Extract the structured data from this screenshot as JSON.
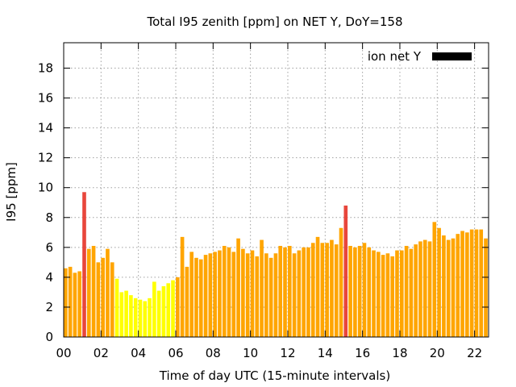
{
  "chart_data": {
    "type": "bar",
    "title": "Total I95 zenith [ppm] on NET Y, DoY=158",
    "xlabel": "Time of day UTC (15-minute intervals)",
    "ylabel": "I95 [ppm]",
    "xlim": [
      0,
      22.75
    ],
    "ylim": [
      0,
      19.7
    ],
    "x_ticks": [
      "00",
      "02",
      "04",
      "06",
      "08",
      "10",
      "12",
      "14",
      "16",
      "18",
      "20",
      "22"
    ],
    "x_tick_values": [
      0,
      2,
      4,
      6,
      8,
      10,
      12,
      14,
      16,
      18,
      20,
      22
    ],
    "y_ticks": [
      0,
      2,
      4,
      6,
      8,
      10,
      12,
      14,
      16,
      18
    ],
    "grid": true,
    "legend": {
      "label": "ion net Y",
      "color": "#000000",
      "position": "top-right"
    },
    "interval_hours": 0.25,
    "colors": {
      "high": "#e8463c",
      "mid": "#ffa500",
      "low": "#ffff00"
    },
    "thresholds": {
      "high_at_or_above": 8,
      "low_below": 4
    },
    "values": [
      4.6,
      4.7,
      4.3,
      4.4,
      9.7,
      5.9,
      6.1,
      5.0,
      5.3,
      5.9,
      5.0,
      3.9,
      3.0,
      3.1,
      2.8,
      2.6,
      2.5,
      2.4,
      2.6,
      3.7,
      3.1,
      3.4,
      3.6,
      3.8,
      4.0,
      6.7,
      4.7,
      5.7,
      5.3,
      5.2,
      5.5,
      5.6,
      5.7,
      5.8,
      6.1,
      6.0,
      5.7,
      6.6,
      5.9,
      5.6,
      5.8,
      5.4,
      6.5,
      5.6,
      5.3,
      5.6,
      6.1,
      6.0,
      6.1,
      5.6,
      5.8,
      6.0,
      6.0,
      6.3,
      6.7,
      6.3,
      6.3,
      6.5,
      6.2,
      7.3,
      8.8,
      6.1,
      6.0,
      6.1,
      6.3,
      6.0,
      5.8,
      5.7,
      5.5,
      5.6,
      5.4,
      5.8,
      5.8,
      6.1,
      5.9,
      6.2,
      6.4,
      6.5,
      6.4,
      7.7,
      7.3,
      6.8,
      6.5,
      6.6,
      6.9,
      7.1,
      7.0,
      7.2,
      7.2,
      7.2,
      6.6
    ]
  }
}
